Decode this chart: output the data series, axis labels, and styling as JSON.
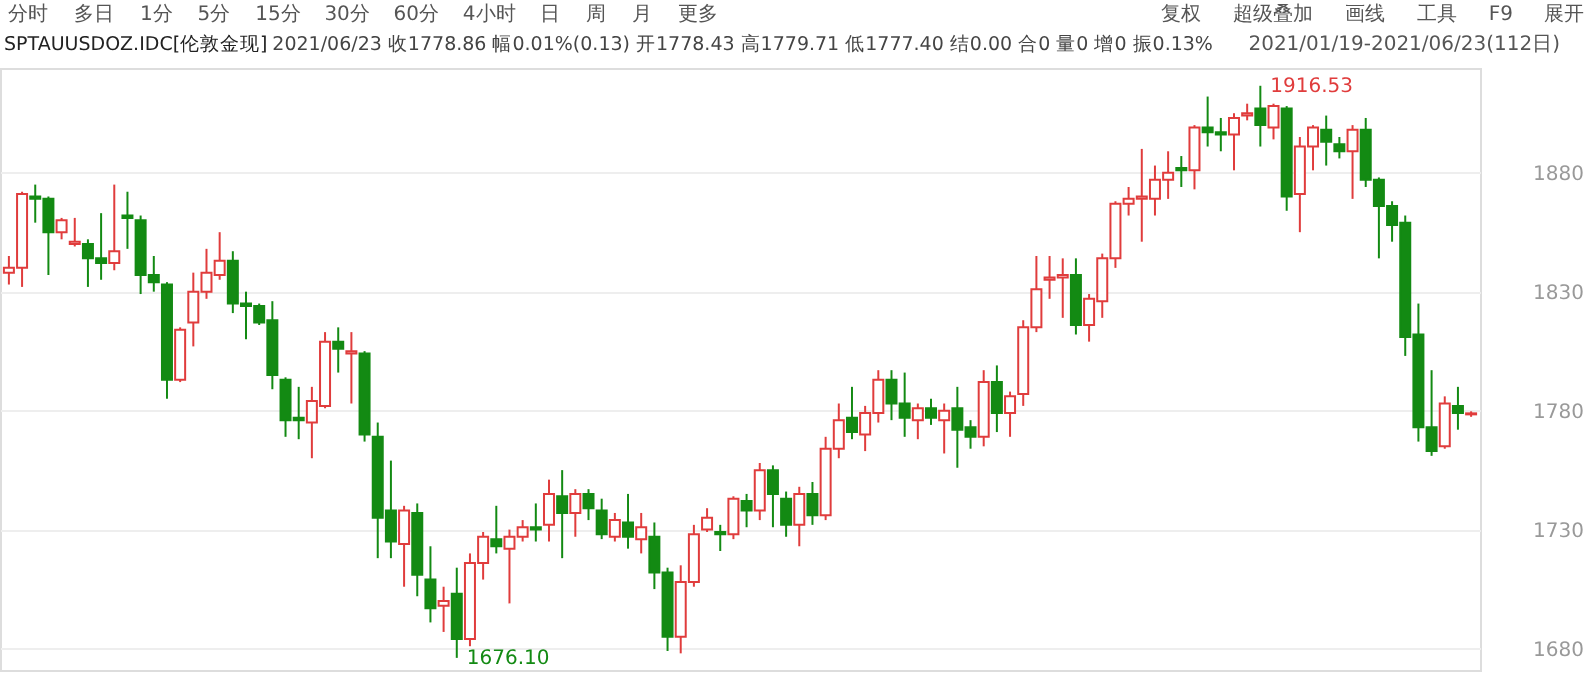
{
  "chart_data": {
    "type": "candlestick",
    "title": "SPTAUUSDOZ.IDC[伦敦金现]",
    "subtitle": "2021/06/23 收1778.86 幅0.01%(0.13) 开1778.43 高1779.71 低1777.40 结0.00 合0 量0 增0 振0.13%",
    "annotations": [
      "分时",
      "多日",
      "1分",
      "5分",
      "15分",
      "30分",
      "60分",
      "4小时",
      "日",
      "周",
      "月",
      "更多",
      "复权",
      "超级叠加",
      "画线",
      "工具",
      "F9",
      "展开",
      "2021/01/19-2021/06/23(112日)",
      "1916.53",
      "1676.10"
    ],
    "categories": [
      null,
      null,
      null,
      null,
      null,
      null,
      null,
      null,
      null,
      null,
      null,
      null,
      null,
      null,
      null,
      null,
      null,
      null,
      null,
      null,
      null,
      null,
      null,
      null,
      null,
      null,
      null,
      null,
      null,
      null,
      null,
      null,
      null,
      null,
      null,
      null,
      null,
      null,
      null,
      null,
      null,
      null,
      null,
      null,
      null,
      null,
      null,
      null,
      null,
      null,
      null,
      null,
      null,
      null,
      null,
      null,
      null,
      null,
      null,
      null,
      null,
      null,
      null,
      null,
      null,
      null,
      null,
      null,
      null,
      null,
      null,
      null,
      null,
      null,
      null,
      null,
      null,
      null,
      null,
      null,
      null,
      null,
      null,
      null,
      null,
      null,
      null,
      null,
      null,
      null,
      null,
      null,
      null,
      null,
      null,
      null,
      null,
      null,
      null,
      null,
      null,
      null,
      null,
      null,
      null,
      null,
      null,
      null,
      null,
      null,
      null,
      null
    ],
    "ohlc": [
      [
        1838,
        1845,
        1833,
        1840
      ],
      [
        1840,
        1872,
        1832,
        1871
      ],
      [
        1870,
        1875,
        1859,
        1869
      ],
      [
        1869,
        1870,
        1837,
        1855
      ],
      [
        1855,
        1861,
        1852,
        1860
      ],
      [
        1850,
        1861,
        1849,
        1851
      ],
      [
        1850,
        1852,
        1832,
        1844
      ],
      [
        1844,
        1863,
        1835,
        1842
      ],
      [
        1842,
        1875,
        1839,
        1847
      ],
      [
        1862,
        1872,
        1848,
        1861
      ],
      [
        1860,
        1862,
        1829,
        1837
      ],
      [
        1837,
        1845,
        1830,
        1834
      ],
      [
        1833,
        1834,
        1785,
        1793
      ],
      [
        1793,
        1815,
        1792,
        1814
      ],
      [
        1817,
        1838,
        1807,
        1830
      ],
      [
        1830,
        1848,
        1827,
        1838
      ],
      [
        1837,
        1855,
        1835,
        1843
      ],
      [
        1843,
        1847,
        1821,
        1825
      ],
      [
        1825,
        1830,
        1810,
        1824
      ],
      [
        1824,
        1825,
        1816,
        1817
      ],
      [
        1818,
        1826,
        1789,
        1795
      ],
      [
        1793,
        1794,
        1769,
        1776
      ],
      [
        1777,
        1790,
        1768,
        1776
      ],
      [
        1775,
        1790,
        1760,
        1784
      ],
      [
        1782,
        1813,
        1781,
        1809
      ],
      [
        1809,
        1815,
        1796,
        1806
      ],
      [
        1804,
        1813,
        1783,
        1805
      ],
      [
        1804,
        1805,
        1767,
        1770
      ],
      [
        1769,
        1775,
        1718,
        1735
      ],
      [
        1738,
        1759,
        1718,
        1725
      ],
      [
        1724,
        1740,
        1706,
        1738
      ],
      [
        1737,
        1741,
        1702,
        1711
      ],
      [
        1709,
        1723,
        1691,
        1697
      ],
      [
        1698,
        1706,
        1687,
        1700
      ],
      [
        1703,
        1714,
        1676.1,
        1684
      ],
      [
        1684,
        1720,
        1681,
        1716
      ],
      [
        1716,
        1729,
        1709,
        1727
      ],
      [
        1726,
        1740,
        1720,
        1723
      ],
      [
        1722,
        1730,
        1699,
        1727
      ],
      [
        1727,
        1734,
        1725,
        1731
      ],
      [
        1731,
        1741,
        1725,
        1730
      ],
      [
        1732,
        1751,
        1725,
        1745
      ],
      [
        1744,
        1755,
        1718,
        1737
      ],
      [
        1737,
        1747,
        1727,
        1745
      ],
      [
        1745,
        1747,
        1734,
        1739
      ],
      [
        1738,
        1743,
        1726,
        1728
      ],
      [
        1727,
        1737,
        1725,
        1734
      ],
      [
        1733,
        1745,
        1722,
        1727
      ],
      [
        1726,
        1737,
        1720,
        1731
      ],
      [
        1727,
        1733,
        1705,
        1712
      ],
      [
        1712,
        1714,
        1679,
        1685
      ],
      [
        1685,
        1715,
        1678,
        1708
      ],
      [
        1708,
        1732,
        1706,
        1728
      ],
      [
        1730,
        1739,
        1729,
        1735
      ],
      [
        1729,
        1732,
        1721,
        1728
      ],
      [
        1728,
        1744,
        1726,
        1743
      ],
      [
        1742,
        1745,
        1731,
        1738
      ],
      [
        1738,
        1758,
        1734,
        1755
      ],
      [
        1755,
        1757,
        1731,
        1745
      ],
      [
        1743,
        1746,
        1727,
        1732
      ],
      [
        1732,
        1748,
        1723,
        1745
      ],
      [
        1745,
        1750,
        1732,
        1736
      ],
      [
        1736,
        1769,
        1734,
        1764
      ],
      [
        1764,
        1783,
        1760,
        1776
      ],
      [
        1777,
        1790,
        1768,
        1771
      ],
      [
        1770,
        1782,
        1763,
        1779
      ],
      [
        1779,
        1797,
        1775,
        1793
      ],
      [
        1793,
        1797,
        1776,
        1783
      ],
      [
        1783,
        1796,
        1769,
        1777
      ],
      [
        1776,
        1783,
        1768,
        1781
      ],
      [
        1781,
        1785,
        1774,
        1777
      ],
      [
        1776,
        1783,
        1762,
        1780
      ],
      [
        1781,
        1790,
        1756,
        1772
      ],
      [
        1773,
        1776,
        1764,
        1769
      ],
      [
        1769,
        1797,
        1765,
        1792
      ],
      [
        1792,
        1799,
        1771,
        1779
      ],
      [
        1779,
        1788,
        1769,
        1786
      ],
      [
        1787,
        1818,
        1782,
        1815
      ],
      [
        1815,
        1845,
        1813,
        1831
      ],
      [
        1835,
        1845,
        1827,
        1836
      ],
      [
        1836,
        1844,
        1819,
        1837
      ],
      [
        1837,
        1844,
        1812,
        1816
      ],
      [
        1816,
        1829,
        1809,
        1827
      ],
      [
        1826,
        1846,
        1819,
        1844
      ],
      [
        1844,
        1868,
        1840,
        1867
      ],
      [
        1867,
        1874,
        1862,
        1869
      ],
      [
        1869,
        1890,
        1851,
        1870
      ],
      [
        1869,
        1883,
        1862,
        1877
      ],
      [
        1877,
        1889,
        1869,
        1880
      ],
      [
        1882,
        1887,
        1874,
        1881
      ],
      [
        1881,
        1900,
        1873,
        1899
      ],
      [
        1899,
        1912,
        1891,
        1897
      ],
      [
        1897,
        1903,
        1889,
        1896
      ],
      [
        1896,
        1905,
        1881,
        1903
      ],
      [
        1904,
        1909,
        1902,
        1905
      ],
      [
        1907,
        1916.53,
        1891,
        1900
      ],
      [
        1899,
        1909,
        1894,
        1908
      ],
      [
        1907,
        1908,
        1864,
        1870
      ],
      [
        1871,
        1895,
        1855,
        1891
      ],
      [
        1891,
        1900,
        1881,
        1899
      ],
      [
        1898,
        1904,
        1883,
        1893
      ],
      [
        1892,
        1895,
        1886,
        1889
      ],
      [
        1889,
        1900,
        1869,
        1898
      ],
      [
        1898,
        1903,
        1874,
        1877
      ],
      [
        1877,
        1878,
        1844,
        1866
      ],
      [
        1866,
        1868,
        1851,
        1858
      ],
      [
        1859,
        1862,
        1803,
        1811
      ],
      [
        1812,
        1825,
        1767,
        1773
      ],
      [
        1773,
        1797,
        1761,
        1763
      ],
      [
        1765,
        1786,
        1764,
        1783
      ],
      [
        1782,
        1790,
        1772,
        1779
      ],
      [
        1778.43,
        1779.71,
        1777.4,
        1778.86
      ]
    ],
    "colors": [
      "#e03c3c",
      "#e03c3c",
      "#138a13",
      "#138a13",
      "#e03c3c",
      "#e03c3c",
      "#138a13",
      "#138a13",
      "#e03c3c",
      "#138a13",
      "#138a13",
      "#138a13",
      "#138a13",
      "#e03c3c",
      "#e03c3c",
      "#e03c3c",
      "#e03c3c",
      "#138a13",
      "#138a13",
      "#138a13",
      "#138a13",
      "#138a13",
      "#138a13",
      "#e03c3c",
      "#e03c3c",
      "#138a13",
      "#e03c3c",
      "#138a13",
      "#138a13",
      "#138a13",
      "#e03c3c",
      "#138a13",
      "#138a13",
      "#e03c3c",
      "#138a13",
      "#e03c3c",
      "#e03c3c",
      "#138a13",
      "#e03c3c",
      "#e03c3c",
      "#138a13",
      "#e03c3c",
      "#138a13",
      "#e03c3c",
      "#138a13",
      "#138a13",
      "#e03c3c",
      "#138a13",
      "#e03c3c",
      "#138a13",
      "#138a13",
      "#e03c3c",
      "#e03c3c",
      "#e03c3c",
      "#138a13",
      "#e03c3c",
      "#138a13",
      "#e03c3c",
      "#138a13",
      "#138a13",
      "#e03c3c",
      "#138a13",
      "#e03c3c",
      "#e03c3c",
      "#138a13",
      "#e03c3c",
      "#e03c3c",
      "#138a13",
      "#138a13",
      "#e03c3c",
      "#138a13",
      "#e03c3c",
      "#138a13",
      "#138a13",
      "#e03c3c",
      "#138a13",
      "#e03c3c",
      "#e03c3c",
      "#e03c3c",
      "#e03c3c",
      "#e03c3c",
      "#138a13",
      "#e03c3c",
      "#e03c3c",
      "#e03c3c",
      "#e03c3c",
      "#e03c3c",
      "#e03c3c",
      "#e03c3c",
      "#138a13",
      "#e03c3c",
      "#138a13",
      "#138a13",
      "#e03c3c",
      "#e03c3c",
      "#138a13",
      "#e03c3c",
      "#138a13",
      "#e03c3c",
      "#e03c3c",
      "#138a13",
      "#138a13",
      "#e03c3c",
      "#138a13",
      "#138a13",
      "#138a13",
      "#138a13",
      "#138a13",
      "#138a13",
      "#e03c3c",
      "#138a13",
      "#e03c3c"
    ],
    "ylim": [
      1671,
      1924
    ],
    "yticks": [
      1680,
      1730,
      1780,
      1830,
      1880
    ],
    "grid": "y"
  }
}
